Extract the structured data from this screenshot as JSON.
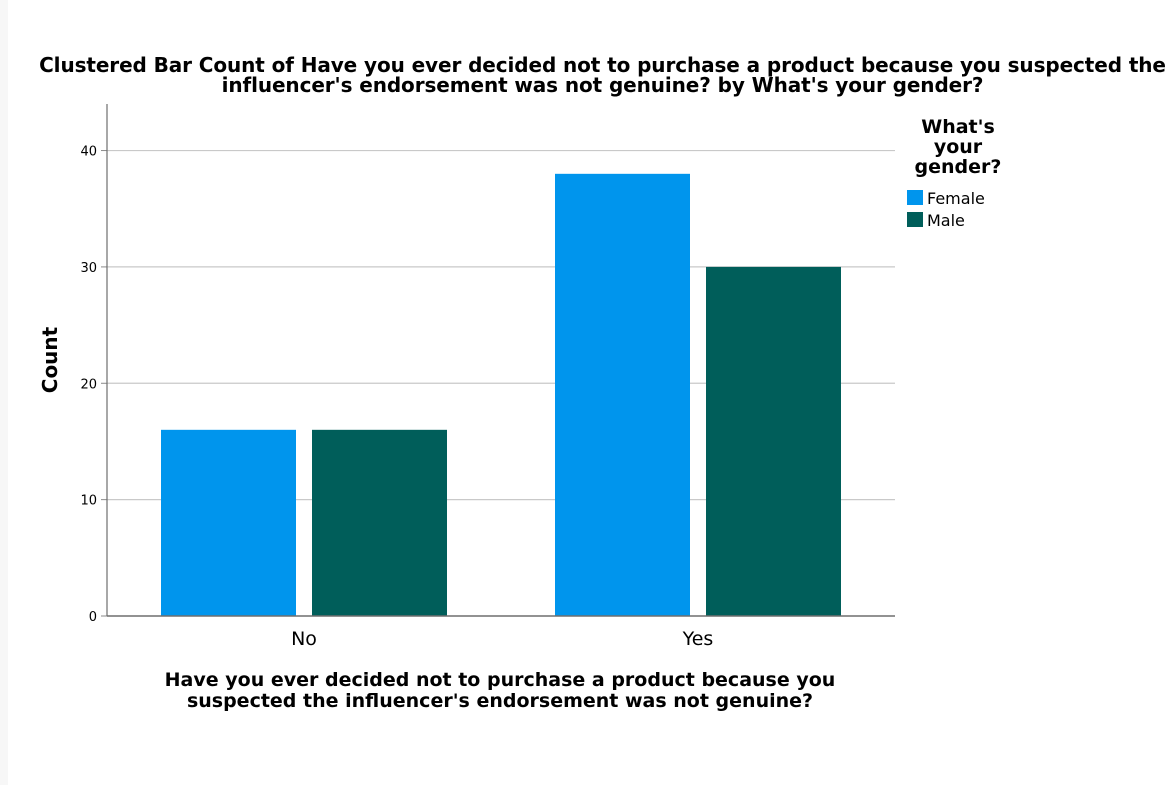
{
  "chart_data": {
    "type": "bar",
    "title_lines": [
      "Clustered Bar Count of Have you ever decided not to purchase a product because you suspected the",
      "influencer's endorsement was not genuine? by What's your gender?"
    ],
    "xlabel_lines": [
      "Have you ever decided not to purchase a product because you",
      "suspected the influencer's endorsement was not genuine?"
    ],
    "ylabel": "Count",
    "categories": [
      "No",
      "Yes"
    ],
    "series": [
      {
        "name": "Female",
        "color": "#0095ed",
        "values": [
          16,
          38
        ]
      },
      {
        "name": "Male",
        "color": "#005e5a",
        "values": [
          16,
          30
        ]
      }
    ],
    "ylim": [
      0,
      44
    ],
    "yticks": [
      0,
      10,
      20,
      30,
      40
    ],
    "grid": true,
    "legend": {
      "title_lines": [
        "What's",
        "your",
        "gender?"
      ],
      "placement": "right"
    }
  }
}
